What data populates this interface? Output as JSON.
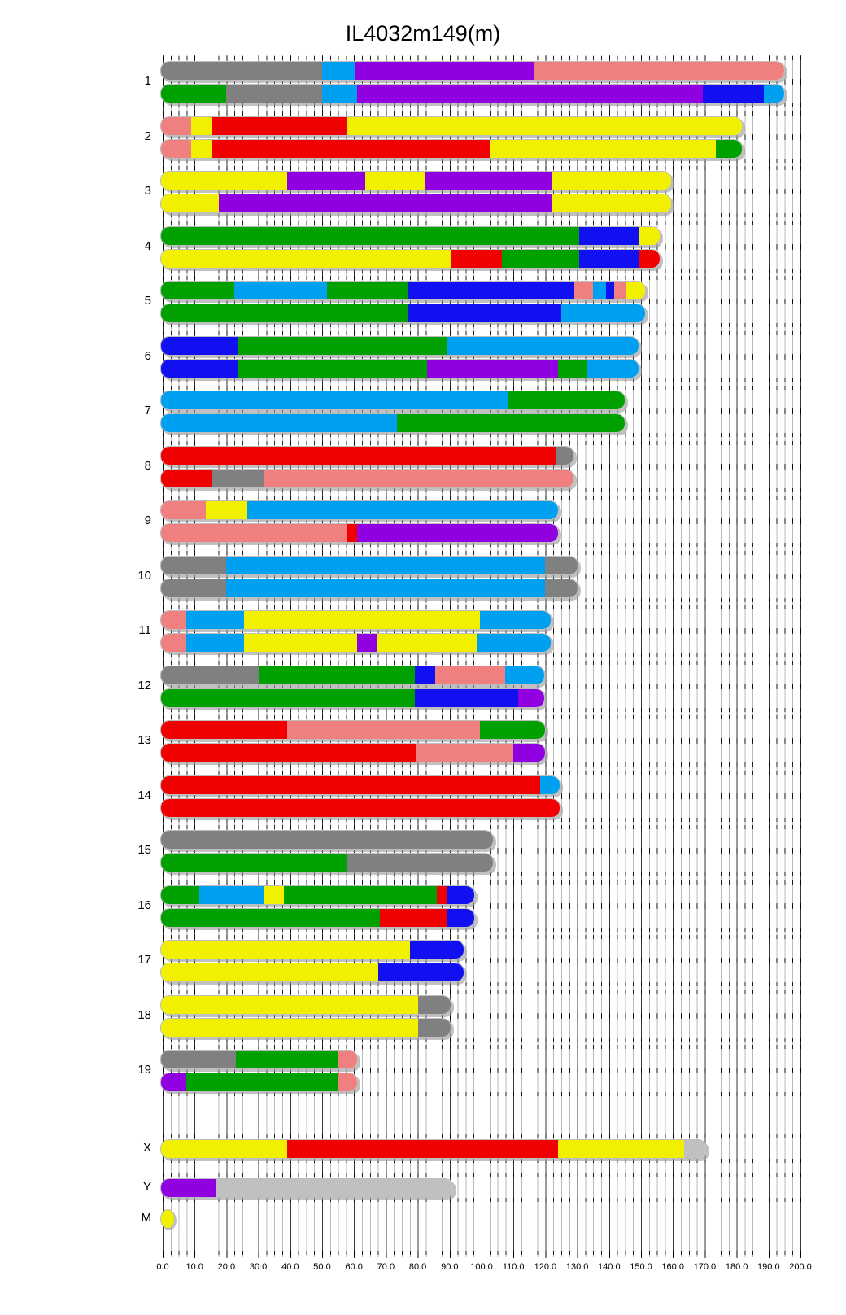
{
  "title": "IL4032m149(m)",
  "chart_data": {
    "type": "heatmap",
    "subtype": "genome-haplotype-mosaic",
    "title": "IL4032m149(m)",
    "axis": {
      "min": 0,
      "max": 200,
      "major_step": 10,
      "minor_step": 2.5,
      "tick_labels": [
        "0.0",
        "10.0",
        "20.0",
        "30.0",
        "40.0",
        "50.0",
        "60.0",
        "70.0",
        "80.0",
        "90.0",
        "100.0",
        "110.0",
        "120.0",
        "130.0",
        "140.0",
        "150.0",
        "160.0",
        "170.0",
        "180.0",
        "190.0",
        "200.0"
      ]
    },
    "palette": {
      "yellow": "#F0F000",
      "gray": "#808080",
      "pink": "#F08080",
      "darkblue": "#1010F0",
      "lightblue": "#00A0F0",
      "green": "#00A000",
      "red": "#F00000",
      "purple": "#9000E0",
      "silver": "#C0C0C0"
    },
    "chromosomes": [
      {
        "name": "1",
        "length": 195.5,
        "bars": [
          [
            [
              "gray",
              0,
              50.5
            ],
            [
              "lightblue",
              50.5,
              61
            ],
            [
              "purple",
              61,
              117
            ],
            [
              "pink",
              117,
              195.5
            ]
          ],
          [
            [
              "green",
              0,
              20.5
            ],
            [
              "gray",
              20.5,
              50.5
            ],
            [
              "lightblue",
              50.5,
              61.5
            ],
            [
              "purple",
              61.5,
              170
            ],
            [
              "darkblue",
              170,
              189
            ],
            [
              "lightblue",
              189,
              195.5
            ]
          ]
        ]
      },
      {
        "name": "2",
        "length": 182.1,
        "bars": [
          [
            [
              "pink",
              0,
              9.5
            ],
            [
              "yellow",
              9.5,
              16
            ],
            [
              "red",
              16,
              58.5
            ],
            [
              "yellow",
              58.5,
              182.1
            ]
          ],
          [
            [
              "pink",
              0,
              9.5
            ],
            [
              "yellow",
              9.5,
              16
            ],
            [
              "red",
              16,
              103
            ],
            [
              "yellow",
              103,
              174
            ],
            [
              "green",
              174,
              182.1
            ]
          ]
        ]
      },
      {
        "name": "3",
        "length": 160,
        "bars": [
          [
            [
              "yellow",
              0,
              39.5
            ],
            [
              "purple",
              39.5,
              64
            ],
            [
              "yellow",
              64,
              83
            ],
            [
              "purple",
              83,
              122.5
            ],
            [
              "yellow",
              122.5,
              160
            ]
          ],
          [
            [
              "yellow",
              0,
              18
            ],
            [
              "purple",
              18,
              122.5
            ],
            [
              "yellow",
              122.5,
              160
            ]
          ]
        ]
      },
      {
        "name": "4",
        "length": 156.5,
        "bars": [
          [
            [
              "green",
              0,
              131
            ],
            [
              "darkblue",
              131,
              150
            ],
            [
              "yellow",
              150,
              156.5
            ]
          ],
          [
            [
              "yellow",
              0,
              91
            ],
            [
              "red",
              91,
              107
            ],
            [
              "green",
              107,
              131
            ],
            [
              "darkblue",
              131,
              150
            ],
            [
              "red",
              150,
              156.5
            ]
          ]
        ]
      },
      {
        "name": "5",
        "length": 151.8,
        "bars": [
          [
            [
              "green",
              0,
              23
            ],
            [
              "lightblue",
              23,
              52
            ],
            [
              "green",
              52,
              77.5
            ],
            [
              "darkblue",
              77.5,
              129.5
            ],
            [
              "pink",
              129.5,
              135.5
            ],
            [
              "lightblue",
              135.5,
              139.5
            ],
            [
              "darkblue",
              139.5,
              142
            ],
            [
              "pink",
              142,
              146
            ],
            [
              "yellow",
              146,
              151.8
            ]
          ],
          [
            [
              "green",
              0,
              77.5
            ],
            [
              "darkblue",
              77.5,
              125.5
            ],
            [
              "lightblue",
              125.5,
              151.8
            ]
          ]
        ]
      },
      {
        "name": "6",
        "length": 149.7,
        "bars": [
          [
            [
              "darkblue",
              0,
              24
            ],
            [
              "green",
              24,
              89.5
            ],
            [
              "lightblue",
              89.5,
              149.7
            ]
          ],
          [
            [
              "darkblue",
              0,
              24
            ],
            [
              "green",
              24,
              83.5
            ],
            [
              "purple",
              83.5,
              124.5
            ],
            [
              "green",
              124.5,
              133.5
            ],
            [
              "lightblue",
              133.5,
              149.7
            ]
          ]
        ]
      },
      {
        "name": "7",
        "length": 145.4,
        "bars": [
          [
            [
              "lightblue",
              0,
              109
            ],
            [
              "green",
              109,
              145.4
            ]
          ],
          [
            [
              "lightblue",
              0,
              74
            ],
            [
              "green",
              74,
              145.4
            ]
          ]
        ]
      },
      {
        "name": "8",
        "length": 129.4,
        "bars": [
          [
            [
              "red",
              0,
              124
            ],
            [
              "gray",
              124,
              129.4
            ]
          ],
          [
            [
              "red",
              0,
              16
            ],
            [
              "gray",
              16,
              32.5
            ],
            [
              "pink",
              32.5,
              129.4
            ]
          ]
        ]
      },
      {
        "name": "9",
        "length": 124.6,
        "bars": [
          [
            [
              "pink",
              0,
              14
            ],
            [
              "yellow",
              14,
              27
            ],
            [
              "lightblue",
              27,
              124.6
            ]
          ],
          [
            [
              "pink",
              0,
              58.5
            ],
            [
              "red",
              58.5,
              61.5
            ],
            [
              "purple",
              61.5,
              124.6
            ]
          ]
        ]
      },
      {
        "name": "10",
        "length": 130.7,
        "bars": [
          [
            [
              "gray",
              0,
              20.5
            ],
            [
              "lightblue",
              20.5,
              120.5
            ],
            [
              "gray",
              120.5,
              130.7
            ]
          ],
          [
            [
              "gray",
              0,
              20.5
            ],
            [
              "lightblue",
              20.5,
              120.5
            ],
            [
              "gray",
              120.5,
              130.7
            ]
          ]
        ]
      },
      {
        "name": "11",
        "length": 122.1,
        "bars": [
          [
            [
              "pink",
              0,
              8
            ],
            [
              "lightblue",
              8,
              26
            ],
            [
              "yellow",
              26,
              100
            ],
            [
              "lightblue",
              100,
              122.1
            ]
          ],
          [
            [
              "pink",
              0,
              8
            ],
            [
              "lightblue",
              8,
              26
            ],
            [
              "yellow",
              26,
              61.5
            ],
            [
              "purple",
              61.5,
              67.5
            ],
            [
              "yellow",
              67.5,
              99
            ],
            [
              "lightblue",
              99,
              122.1
            ]
          ]
        ]
      },
      {
        "name": "12",
        "length": 120.1,
        "bars": [
          [
            [
              "gray",
              0,
              30.5
            ],
            [
              "green",
              30.5,
              79.5
            ],
            [
              "darkblue",
              79.5,
              86
            ],
            [
              "pink",
              86,
              108
            ],
            [
              "lightblue",
              108,
              120.1
            ]
          ],
          [
            [
              "green",
              0,
              79.5
            ],
            [
              "darkblue",
              79.5,
              112
            ],
            [
              "purple",
              112,
              120.1
            ]
          ]
        ]
      },
      {
        "name": "13",
        "length": 120.4,
        "bars": [
          [
            [
              "red",
              0,
              39.5
            ],
            [
              "pink",
              39.5,
              100
            ],
            [
              "green",
              100,
              120.4
            ]
          ],
          [
            [
              "red",
              0,
              80
            ],
            [
              "pink",
              80,
              110.5
            ],
            [
              "purple",
              110.5,
              120.4
            ]
          ]
        ]
      },
      {
        "name": "14",
        "length": 124.9,
        "bars": [
          [
            [
              "red",
              0,
              119
            ],
            [
              "lightblue",
              119,
              124.9
            ]
          ],
          [
            [
              "red",
              0,
              124.9
            ]
          ]
        ]
      },
      {
        "name": "15",
        "length": 104,
        "bars": [
          [
            [
              "gray",
              0,
              104
            ]
          ],
          [
            [
              "green",
              0,
              58.5
            ],
            [
              "gray",
              58.5,
              104
            ]
          ]
        ]
      },
      {
        "name": "16",
        "length": 98.2,
        "bars": [
          [
            [
              "green",
              0,
              12
            ],
            [
              "lightblue",
              12,
              32.5
            ],
            [
              "yellow",
              32.5,
              38.5
            ],
            [
              "green",
              38.5,
              86.5
            ],
            [
              "red",
              86.5,
              89.5
            ],
            [
              "darkblue",
              89.5,
              98.2
            ]
          ],
          [
            [
              "green",
              0,
              68.5
            ],
            [
              "red",
              68.5,
              89.5
            ],
            [
              "darkblue",
              89.5,
              98.2
            ]
          ]
        ]
      },
      {
        "name": "17",
        "length": 95,
        "bars": [
          [
            [
              "yellow",
              0,
              78
            ],
            [
              "darkblue",
              78,
              95
            ]
          ],
          [
            [
              "yellow",
              0,
              68
            ],
            [
              "darkblue",
              68,
              95
            ]
          ]
        ]
      },
      {
        "name": "18",
        "length": 90.7,
        "bars": [
          [
            [
              "yellow",
              0,
              80.5
            ],
            [
              "gray",
              80.5,
              90.7
            ]
          ],
          [
            [
              "yellow",
              0,
              80.5
            ],
            [
              "gray",
              80.5,
              90.7
            ]
          ]
        ]
      },
      {
        "name": "19",
        "length": 61.4,
        "bars": [
          [
            [
              "gray",
              0,
              23.5
            ],
            [
              "green",
              23.5,
              55.5
            ],
            [
              "pink",
              55.5,
              61.4
            ]
          ],
          [
            [
              "purple",
              0,
              8
            ],
            [
              "green",
              8,
              55.5
            ],
            [
              "pink",
              55.5,
              61.4
            ]
          ]
        ]
      },
      {
        "name": "X",
        "length": 171,
        "bars": [
          [
            [
              "yellow",
              0,
              39.5
            ],
            [
              "red",
              39.5,
              124.5
            ],
            [
              "yellow",
              124.5,
              164
            ],
            [
              "silver",
              164,
              171
            ]
          ]
        ]
      },
      {
        "name": "Y",
        "length": 91.7,
        "bars": [
          [
            [
              "purple",
              0,
              17
            ],
            [
              "silver",
              17,
              91.7
            ]
          ]
        ]
      },
      {
        "name": "M",
        "length": 4,
        "mito": true,
        "bars": [
          [
            [
              "yellow",
              0,
              4
            ]
          ]
        ]
      }
    ]
  }
}
